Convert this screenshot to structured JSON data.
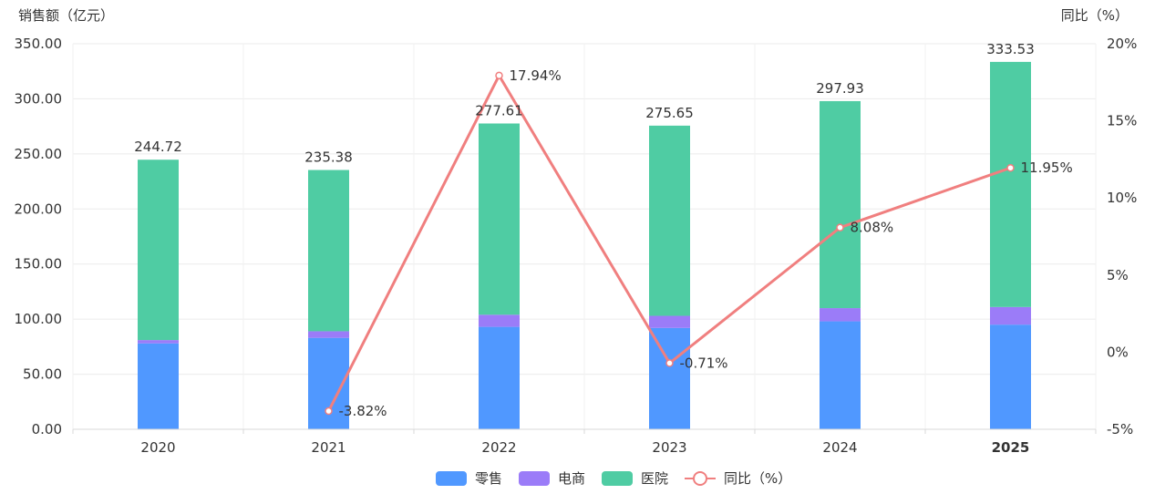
{
  "chart_data": {
    "type": "bar",
    "stacked": true,
    "categories": [
      "2020",
      "2021",
      "2022",
      "2023",
      "2024",
      "2025"
    ],
    "series": [
      {
        "name": "零售",
        "type": "bar",
        "color": "#5098FF",
        "values": [
          78,
          83,
          93,
          92,
          98,
          95
        ]
      },
      {
        "name": "电商",
        "type": "bar",
        "color": "#9B7CF8",
        "values": [
          3,
          6,
          11,
          11,
          12,
          16
        ]
      },
      {
        "name": "医院",
        "type": "bar",
        "color": "#4FCCA3",
        "values": [
          163.72,
          146.38,
          173.61,
          172.65,
          187.93,
          222.53
        ]
      },
      {
        "name": "同比（%）",
        "type": "line",
        "axis": "right",
        "color": "#F07F7F",
        "values": [
          null,
          -3.82,
          17.94,
          -0.71,
          8.08,
          11.95
        ]
      }
    ],
    "totals": [
      "244.72",
      "235.38",
      "277.61",
      "275.65",
      "297.93",
      "333.53"
    ],
    "line_labels": [
      "",
      "-3.82%",
      "17.94%",
      "-0.71%",
      "8.08%",
      "11.95%"
    ],
    "ylabel": "销售额（亿元）",
    "y2label": "同比（%）",
    "ylim": [
      0,
      350
    ],
    "yticks": [
      "0.00",
      "50.00",
      "100.00",
      "150.00",
      "200.00",
      "250.00",
      "300.00",
      "350.00"
    ],
    "y2lim": [
      -5,
      20
    ],
    "y2ticks": [
      "-5%",
      "0%",
      "5%",
      "10%",
      "15%",
      "20%"
    ],
    "grid": true,
    "legend_position": "bottom"
  }
}
